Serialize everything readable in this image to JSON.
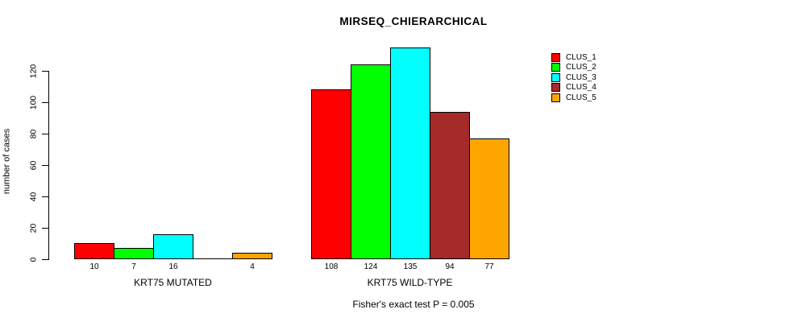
{
  "chart": {
    "title": "MIRSEQ_CHIERARCHICAL",
    "ylabel": "number of cases",
    "footnote": "Fisher's exact test P = 0.005"
  },
  "chart_data": {
    "type": "bar",
    "title": "MIRSEQ_CHIERARCHICAL",
    "xlabel": "",
    "ylabel": "number of cases",
    "categories": [
      "KRT75 MUTATED",
      "KRT75 WILD-TYPE"
    ],
    "series": [
      {
        "name": "CLUS_1",
        "color": "#FF0000",
        "values": [
          10,
          108
        ]
      },
      {
        "name": "CLUS_2",
        "color": "#00FF00",
        "values": [
          7,
          124
        ]
      },
      {
        "name": "CLUS_3",
        "color": "#00FFFF",
        "values": [
          16,
          135
        ]
      },
      {
        "name": "CLUS_4",
        "color": "#A52A2A",
        "values": [
          0,
          94
        ]
      },
      {
        "name": "CLUS_5",
        "color": "#FFA500",
        "values": [
          4,
          77
        ]
      }
    ],
    "bar_value_labels": [
      [
        "10",
        "7",
        "16",
        "",
        "4"
      ],
      [
        "108",
        "124",
        "135",
        "94",
        "77"
      ]
    ],
    "yticks": [
      0,
      20,
      40,
      60,
      80,
      100,
      120
    ],
    "ylim": [
      0,
      136
    ],
    "grid": false,
    "legend_position": "top-right",
    "legend_entries": [
      "CLUS_1",
      "CLUS_2",
      "CLUS_3",
      "CLUS_4",
      "CLUS_5"
    ],
    "footnote": "Fisher's exact test P = 0.005"
  }
}
